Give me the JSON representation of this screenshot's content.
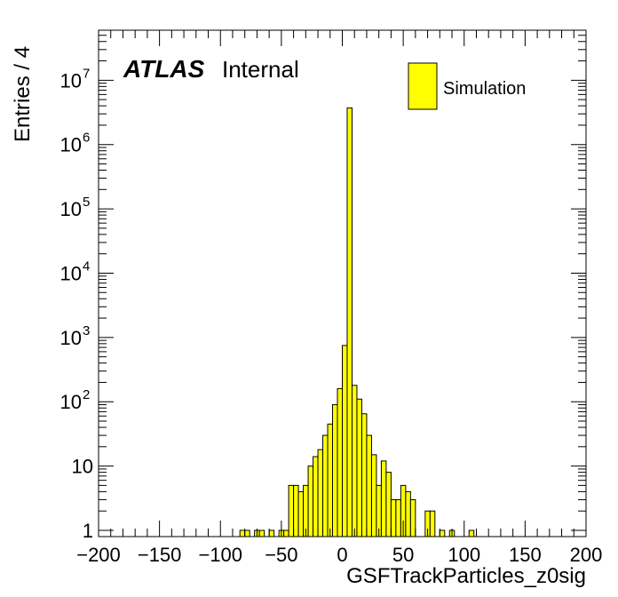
{
  "chart_data": {
    "type": "bar",
    "style": "histogram",
    "xlabel": "GSFTrackParticles_z0sig",
    "ylabel": "Entries / 4",
    "xlim": [
      -200,
      200
    ],
    "ylim": [
      0.8,
      60000000
    ],
    "yscale": "log",
    "bin_width": 4,
    "grid": false,
    "legend_position": "top-right",
    "fill_color": "#ffff00",
    "line_color": "#000000",
    "x_tick_labels": [
      "−200",
      "−150",
      "−100",
      "−50",
      "0",
      "50",
      "100",
      "150",
      "200"
    ],
    "x_tick_values": [
      -200,
      -150,
      -100,
      -50,
      0,
      50,
      100,
      150,
      200
    ],
    "y_tick_values": [
      1,
      10,
      100,
      1000,
      10000,
      100000,
      1000000,
      10000000
    ],
    "y_tick_labels": [
      {
        "base": "1",
        "exp": ""
      },
      {
        "base": "10",
        "exp": ""
      },
      {
        "base": "10",
        "exp": "2"
      },
      {
        "base": "10",
        "exp": "3"
      },
      {
        "base": "10",
        "exp": "4"
      },
      {
        "base": "10",
        "exp": "5"
      },
      {
        "base": "10",
        "exp": "6"
      },
      {
        "base": "10",
        "exp": "7"
      }
    ],
    "series": [
      {
        "name": "Simulation",
        "bins": [
          [
            -84,
            1
          ],
          [
            -80,
            1
          ],
          [
            -72,
            1
          ],
          [
            -68,
            1
          ],
          [
            -60,
            1
          ],
          [
            -52,
            1
          ],
          [
            -48,
            1
          ],
          [
            -44,
            5
          ],
          [
            -40,
            5
          ],
          [
            -36,
            4
          ],
          [
            -32,
            5
          ],
          [
            -28,
            10
          ],
          [
            -24,
            14
          ],
          [
            -20,
            18
          ],
          [
            -16,
            30
          ],
          [
            -12,
            45
          ],
          [
            -8,
            90
          ],
          [
            -4,
            160
          ],
          [
            0,
            750
          ],
          [
            4,
            3700000
          ],
          [
            8,
            180
          ],
          [
            12,
            110
          ],
          [
            16,
            65
          ],
          [
            20,
            30
          ],
          [
            24,
            15
          ],
          [
            28,
            5
          ],
          [
            32,
            12
          ],
          [
            36,
            8
          ],
          [
            40,
            3
          ],
          [
            44,
            3
          ],
          [
            48,
            5
          ],
          [
            52,
            4
          ],
          [
            56,
            3
          ],
          [
            68,
            2
          ],
          [
            72,
            2
          ],
          [
            80,
            1
          ],
          [
            88,
            1
          ],
          [
            104,
            1
          ]
        ]
      }
    ]
  },
  "annotations": {
    "experiment": "ATLAS",
    "status": "Internal"
  }
}
